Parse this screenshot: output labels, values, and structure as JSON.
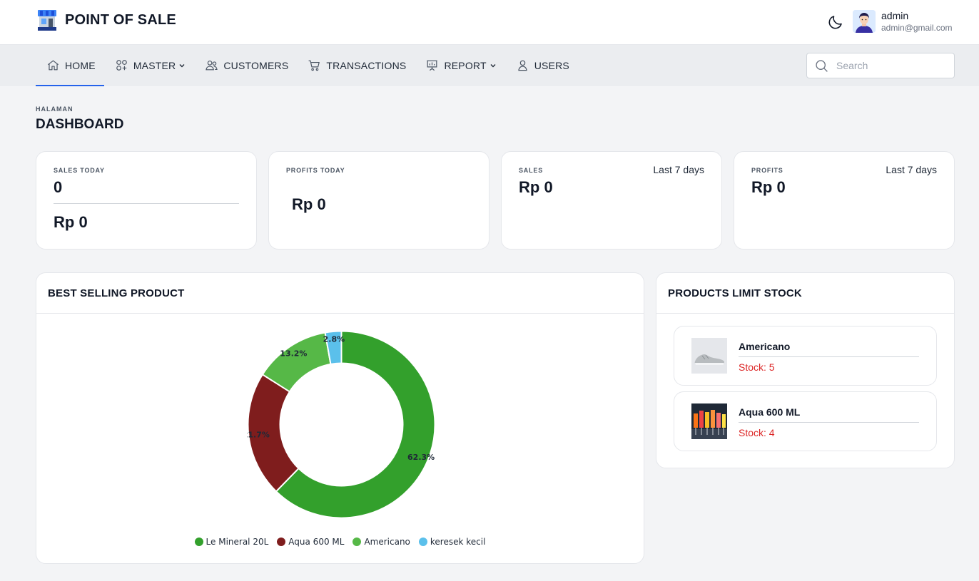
{
  "header": {
    "brand_title": "POINT OF SALE",
    "user_name": "admin",
    "user_email": "admin@gmail.com"
  },
  "nav": {
    "items": [
      {
        "label": "HOME",
        "icon": "home-icon",
        "active": true,
        "dropdown": false
      },
      {
        "label": "MASTER",
        "icon": "grid-icon",
        "active": false,
        "dropdown": true
      },
      {
        "label": "CUSTOMERS",
        "icon": "users-icon",
        "active": false,
        "dropdown": false
      },
      {
        "label": "TRANSACTIONS",
        "icon": "cart-icon",
        "active": false,
        "dropdown": false
      },
      {
        "label": "REPORT",
        "icon": "presentation-chart-icon",
        "active": false,
        "dropdown": true
      },
      {
        "label": "USERS",
        "icon": "user-icon",
        "active": false,
        "dropdown": false
      }
    ],
    "search_placeholder": "Search"
  },
  "page": {
    "eyebrow": "HALAMAN",
    "title": "DASHBOARD"
  },
  "stats": {
    "sales_today": {
      "label": "SALES TODAY",
      "count": "0",
      "amount": "Rp 0"
    },
    "profits_today": {
      "label": "PROFITS TODAY",
      "amount": "Rp 0"
    },
    "sales_week": {
      "label": "SALES",
      "period": "Last 7 days",
      "amount": "Rp 0"
    },
    "profits_week": {
      "label": "PROFITS",
      "period": "Last 7 days",
      "amount": "Rp 0"
    }
  },
  "best_selling": {
    "title": "BEST SELLING PRODUCT"
  },
  "chart_data": {
    "type": "pie",
    "categories": [
      "Le Mineral 20L",
      "Aqua 600 ML",
      "Americano",
      "keresek kecil"
    ],
    "values": [
      62.3,
      21.7,
      13.2,
      2.8
    ],
    "labels": [
      "62.3%",
      "21.7%",
      "13.2%",
      "2.8%"
    ],
    "colors": [
      "#33a02c",
      "#7f1d1d",
      "#56b847",
      "#5bc0eb"
    ],
    "legend_position": "bottom"
  },
  "limit_stock": {
    "title": "PRODUCTS LIMIT STOCK",
    "items": [
      {
        "name": "Americano",
        "stock": "Stock: 5"
      },
      {
        "name": "Aqua 600 ML",
        "stock": "Stock: 4"
      }
    ]
  },
  "colors": {
    "accent": "#2563eb",
    "danger": "#dc2626"
  }
}
